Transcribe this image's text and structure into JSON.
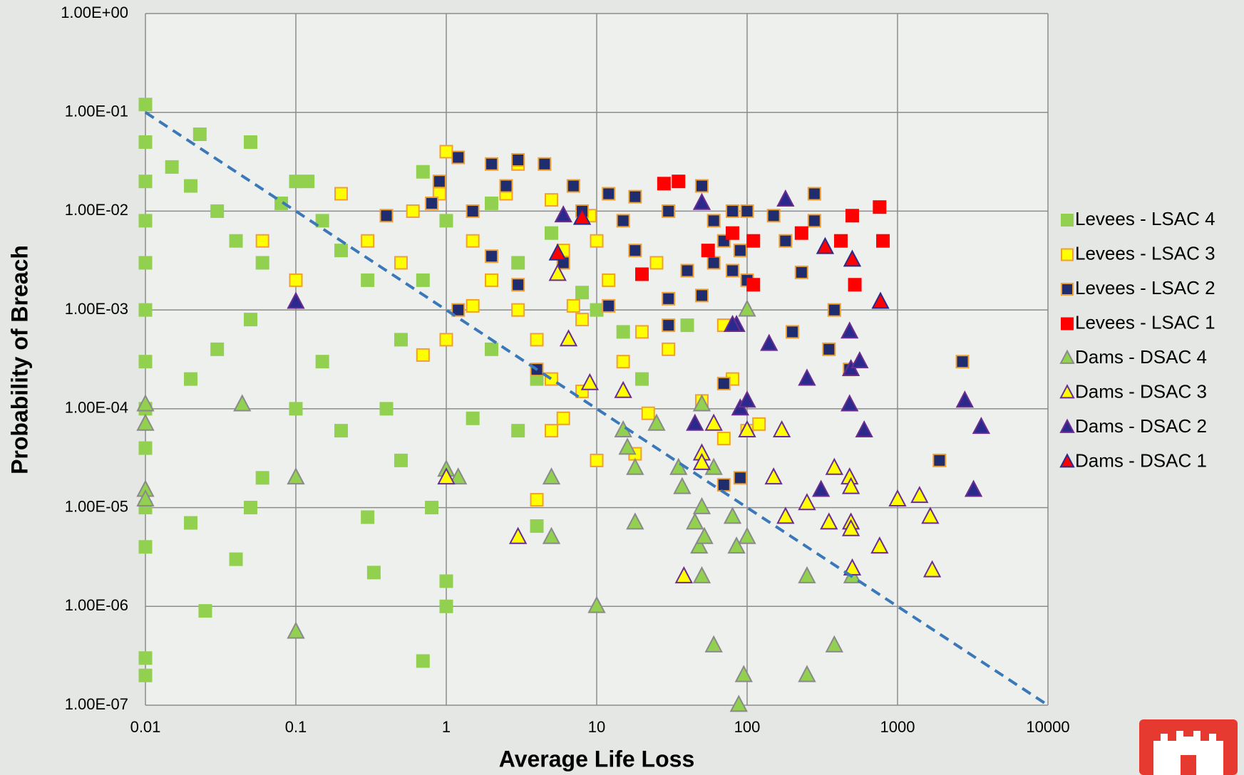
{
  "chart_data": {
    "type": "scatter",
    "x_label": "Average Life Loss",
    "y_label": "Probability of Breach",
    "xscale": "log",
    "yscale": "log",
    "xlim": [
      0.01,
      10000
    ],
    "ylim": [
      1e-07,
      1
    ],
    "xticks": [
      0.01,
      0.1,
      1,
      10,
      100,
      1000,
      10000
    ],
    "yticks": [
      {
        "value": 1e-07,
        "label": "1.00E-07"
      },
      {
        "value": 1e-06,
        "label": "1.00E-06"
      },
      {
        "value": 1e-05,
        "label": "1.00E-05"
      },
      {
        "value": 0.0001,
        "label": "1.00E-04"
      },
      {
        "value": 0.001,
        "label": "1.00E-03"
      },
      {
        "value": 0.01,
        "label": "1.00E-02"
      },
      {
        "value": 0.1,
        "label": "1.00E-01"
      },
      {
        "value": 1,
        "label": "1.00E+00"
      }
    ],
    "grid": true,
    "legend": "right",
    "reference_line": {
      "x": [
        0.01,
        10000
      ],
      "y": [
        0.1,
        1e-07
      ],
      "color": "#3a78b8"
    },
    "series": [
      {
        "name": "Levees - LSAC 4",
        "marker": "square",
        "color": "#92d050",
        "edge": "#92d050",
        "x": [
          0.01,
          0.01,
          0.01,
          0.01,
          0.01,
          0.01,
          0.01,
          0.01,
          0.01,
          0.01,
          0.01,
          0.01,
          0.01,
          0.023,
          0.05,
          0.015,
          0.02,
          0.03,
          0.04,
          0.06,
          0.08,
          0.1,
          0.12,
          0.15,
          0.2,
          0.3,
          0.05,
          0.03,
          0.02,
          0.1,
          0.2,
          0.5,
          0.06,
          0.05,
          0.02,
          0.04,
          0.025,
          0.3,
          0.33,
          1,
          1,
          0.7,
          0.5,
          0.7,
          1,
          0.7,
          2,
          3,
          2,
          4,
          1.5,
          3,
          4,
          5,
          10,
          15,
          20,
          40,
          8,
          0.15,
          0.4,
          0.8
        ],
        "values": [
          0.12,
          0.05,
          0.02,
          0.008,
          0.003,
          0.001,
          0.0003,
          0.0001,
          4e-05,
          1e-05,
          4e-06,
          3e-07,
          2e-07,
          0.06,
          0.05,
          0.028,
          0.018,
          0.01,
          0.005,
          0.003,
          0.012,
          0.02,
          0.02,
          0.008,
          0.004,
          0.002,
          0.0008,
          0.0004,
          0.0002,
          0.0001,
          6e-05,
          3e-05,
          2e-05,
          1e-05,
          7e-06,
          3e-06,
          9e-07,
          8e-06,
          2.2e-06,
          1.8e-06,
          1e-06,
          2.8e-07,
          0.0005,
          0.002,
          0.008,
          0.025,
          0.012,
          0.003,
          0.0004,
          0.0002,
          8e-05,
          6e-05,
          6.5e-06,
          0.006,
          0.001,
          0.0006,
          0.0002,
          0.0007,
          0.0015,
          0.0003,
          0.0001,
          1e-05
        ]
      },
      {
        "name": "Levees - LSAC 3",
        "marker": "square",
        "color": "#ffff00",
        "edge": "#f0a030",
        "x": [
          1,
          0.9,
          0.6,
          0.5,
          0.3,
          0.2,
          0.1,
          0.06,
          1.5,
          2,
          3,
          4,
          3,
          5,
          6,
          8,
          10,
          12,
          15,
          20,
          25,
          30,
          5,
          6,
          4,
          5,
          8,
          10,
          18,
          22,
          70,
          80,
          100,
          120,
          70,
          50,
          1,
          0.7,
          1.5,
          2.5,
          9,
          7
        ],
        "values": [
          0.04,
          0.015,
          0.01,
          0.003,
          0.005,
          0.015,
          0.002,
          0.005,
          0.005,
          0.002,
          0.001,
          0.0005,
          0.03,
          0.013,
          0.004,
          0.0008,
          0.005,
          0.002,
          0.0003,
          0.0006,
          0.003,
          0.0004,
          0.0002,
          8e-05,
          1.2e-05,
          6e-05,
          0.00015,
          3e-05,
          3.5e-05,
          9e-05,
          0.0007,
          0.0002,
          6e-05,
          7e-05,
          5e-05,
          0.00012,
          0.0005,
          0.00035,
          0.0011,
          0.015,
          0.009,
          0.0011
        ]
      },
      {
        "name": "Levees - LSAC 2",
        "marker": "square",
        "color": "#1f2c6e",
        "edge": "#f0a030",
        "x": [
          1.2,
          2,
          3,
          4.5,
          0.9,
          0.4,
          0.8,
          1.5,
          2.5,
          7,
          12,
          18,
          8,
          15,
          30,
          50,
          60,
          80,
          100,
          70,
          90,
          60,
          80,
          100,
          40,
          30,
          50,
          18,
          6,
          3,
          2,
          1.2,
          12,
          30,
          150,
          180,
          280,
          280,
          230,
          380,
          200,
          350,
          480,
          2700,
          1900,
          90,
          70,
          70,
          4
        ],
        "values": [
          0.035,
          0.03,
          0.033,
          0.03,
          0.02,
          0.009,
          0.012,
          0.01,
          0.018,
          0.018,
          0.015,
          0.014,
          0.01,
          0.008,
          0.01,
          0.018,
          0.008,
          0.01,
          0.01,
          0.005,
          0.004,
          0.003,
          0.0025,
          0.002,
          0.0025,
          0.0013,
          0.0014,
          0.004,
          0.003,
          0.0018,
          0.0035,
          0.001,
          0.0011,
          0.0007,
          0.009,
          0.005,
          0.015,
          0.008,
          0.0024,
          0.001,
          0.0006,
          0.0004,
          0.00025,
          0.0003,
          3e-05,
          2e-05,
          1.7e-05,
          0.00018,
          0.00025
        ]
      },
      {
        "name": "Levees - LSAC 1",
        "marker": "square",
        "color": "#ff0000",
        "edge": "#ff0000",
        "x": [
          28,
          35,
          20,
          55,
          80,
          110,
          110,
          230,
          420,
          500,
          520,
          760,
          800
        ],
        "values": [
          0.019,
          0.02,
          0.0023,
          0.004,
          0.006,
          0.005,
          0.0018,
          0.006,
          0.005,
          0.009,
          0.0018,
          0.011,
          0.005
        ]
      },
      {
        "name": "Dams - DSAC 4",
        "marker": "triangle",
        "color": "#92d050",
        "edge": "#8a8a8a",
        "x": [
          0.01,
          0.01,
          0.01,
          0.01,
          0.044,
          0.1,
          0.1,
          1,
          1.2,
          5,
          5,
          10,
          15,
          16,
          18,
          18,
          25,
          35,
          37,
          45,
          48,
          50,
          50,
          52,
          60,
          60,
          80,
          85,
          88,
          95,
          100,
          100,
          100,
          250,
          250,
          380,
          500,
          50
        ],
        "values": [
          0.00011,
          7e-05,
          1.5e-05,
          1.2e-05,
          0.00011,
          2e-05,
          5.5e-07,
          2.4e-05,
          2e-05,
          2e-05,
          5e-06,
          1e-06,
          6e-05,
          4e-05,
          2.5e-05,
          7e-06,
          7e-05,
          2.5e-05,
          1.6e-05,
          7e-06,
          4e-06,
          2e-06,
          1e-05,
          5e-06,
          2.5e-05,
          4e-07,
          8e-06,
          4e-06,
          1e-07,
          2e-07,
          5e-06,
          6e-05,
          0.001,
          2e-06,
          2e-07,
          4e-07,
          2e-06,
          0.00011
        ]
      },
      {
        "name": "Dams - DSAC 3",
        "marker": "triangle",
        "color": "#ffff00",
        "edge": "#6a2c91",
        "x": [
          1,
          3,
          5.5,
          6.5,
          9,
          15,
          38,
          50,
          50,
          60,
          100,
          150,
          170,
          180,
          250,
          350,
          380,
          480,
          490,
          490,
          490,
          500,
          760,
          1000,
          1400,
          1650,
          1700
        ],
        "values": [
          2e-05,
          5e-06,
          0.0023,
          0.0005,
          0.00018,
          0.00015,
          2e-06,
          3.5e-05,
          2.8e-05,
          7e-05,
          6e-05,
          2e-05,
          6e-05,
          8e-06,
          1.1e-05,
          7e-06,
          2.5e-05,
          2e-05,
          1.6e-05,
          7e-06,
          6e-06,
          2.4e-06,
          4e-06,
          1.2e-05,
          1.3e-05,
          8e-06,
          2.3e-06
        ]
      },
      {
        "name": "Dams - DSAC 2",
        "marker": "triangle",
        "color": "#2b2a8c",
        "edge": "#6a2c91",
        "x": [
          0.1,
          6,
          45,
          50,
          85,
          90,
          100,
          140,
          180,
          250,
          310,
          480,
          480,
          490,
          560,
          600,
          2800,
          3200,
          3600,
          80
        ],
        "values": [
          0.0012,
          0.009,
          7e-05,
          0.012,
          0.0007,
          0.0001,
          0.00012,
          0.00045,
          0.013,
          0.0002,
          1.5e-05,
          0.0006,
          0.00011,
          0.00025,
          0.0003,
          6e-05,
          0.00012,
          1.5e-05,
          6.5e-05,
          0.0007
        ]
      },
      {
        "name": "Dams - DSAC 1",
        "marker": "triangle",
        "color": "#ff0000",
        "edge": "#2b2a8c",
        "x": [
          5.5,
          8,
          330,
          500,
          770
        ],
        "values": [
          0.0037,
          0.0085,
          0.0043,
          0.0032,
          0.0012
        ]
      }
    ]
  }
}
